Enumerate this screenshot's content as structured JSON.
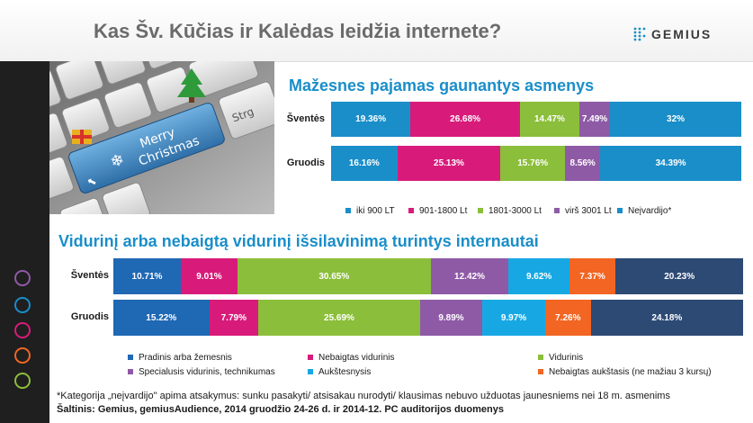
{
  "header": {
    "title": "Kas Šv. Kūčias ir Kalėdas leidžia internete?",
    "logo_text": "GEMIUS"
  },
  "keyboard": {
    "key_merry": "Merry",
    "key_christmas": "Christmas",
    "key_strg": "Strg"
  },
  "sidebar": {
    "icons": [
      "people-icon",
      "lightbulb-icon",
      "cart-icon",
      "wrench-icon",
      "mobile-icon"
    ]
  },
  "colors": {
    "blue": "#1a8ec9",
    "pink": "#d81b7a",
    "green": "#8bbe3a",
    "purple": "#8e5aa6",
    "light_blue": "#17a8e3",
    "dark_blue": "#1f68b4",
    "orange": "#f26522",
    "navy": "#2c4a74"
  },
  "chart_data": [
    {
      "type": "bar",
      "stacked": true,
      "orientation": "horizontal",
      "title": "Mažesnes pajamas gaunantys asmenys",
      "categories": [
        "Šventės",
        "Gruodis"
      ],
      "series": [
        {
          "name": "iki 900 LT",
          "color": "#1a8ec9",
          "values": [
            19.36,
            16.16
          ],
          "labels": [
            "19.36%",
            "16.16%"
          ]
        },
        {
          "name": "901-1800 Lt",
          "color": "#d81b7a",
          "values": [
            26.68,
            25.13
          ],
          "labels": [
            "26.68%",
            "25.13%"
          ]
        },
        {
          "name": "1801-3000 Lt",
          "color": "#8bbe3a",
          "values": [
            14.47,
            15.76
          ],
          "labels": [
            "14.47%",
            "15.76%"
          ]
        },
        {
          "name": "virš 3001 Lt",
          "color": "#8e5aa6",
          "values": [
            7.49,
            8.56
          ],
          "labels": [
            "7.49%",
            "8.56%"
          ]
        },
        {
          "name": "Neįvardijo*",
          "color": "#1a8ec9",
          "values": [
            32,
            34.39
          ],
          "labels": [
            "32%",
            "34.39%"
          ]
        }
      ]
    },
    {
      "type": "bar",
      "stacked": true,
      "orientation": "horizontal",
      "title": "Vidurinį arba nebaigtą vidurinį išsilavinimą turintys internautai",
      "categories": [
        "Šventės",
        "Gruodis"
      ],
      "series": [
        {
          "name": "Pradinis arba žemesnis",
          "color": "#1f68b4",
          "values": [
            10.71,
            15.22
          ],
          "labels": [
            "10.71%",
            "15.22%"
          ]
        },
        {
          "name": "Nebaigtas vidurinis",
          "color": "#d81b7a",
          "values": [
            9.01,
            7.79
          ],
          "labels": [
            "9.01%",
            "7.79%"
          ]
        },
        {
          "name": "Vidurinis",
          "color": "#8bbe3a",
          "values": [
            30.65,
            25.69
          ],
          "labels": [
            "30.65%",
            "25.69%"
          ]
        },
        {
          "name": "Specialusis vidurinis, technikumas",
          "color": "#8e5aa6",
          "values": [
            12.42,
            9.89
          ],
          "labels": [
            "12.42%",
            "9.89%"
          ]
        },
        {
          "name": "Aukštesnysis",
          "color": "#17a8e3",
          "values": [
            9.62,
            9.97
          ],
          "labels": [
            "9.62%",
            "9.97%"
          ]
        },
        {
          "name": "Nebaigtas aukštasis (ne mažiau 3 kursų)",
          "color": "#f26522",
          "values": [
            7.37,
            7.26
          ],
          "labels": [
            "7.37%",
            "7.26%"
          ]
        },
        {
          "name": "",
          "color": "#2c4a74",
          "values": [
            20.23,
            24.18
          ],
          "labels": [
            "20.23%",
            "24.18%"
          ]
        }
      ]
    }
  ],
  "footnote": "*Kategorija „neįvardijo\" apima atsakymus: sunku pasakyti/ atsisakau nurodyti/ klausimas nebuvo užduotas jaunesniems nei 18 m. asmenims",
  "source": "Šaltinis: Gemius, gemiusAudience, 2014 gruodžio 24-26 d. ir 2014-12. PC auditorijos duomenys"
}
